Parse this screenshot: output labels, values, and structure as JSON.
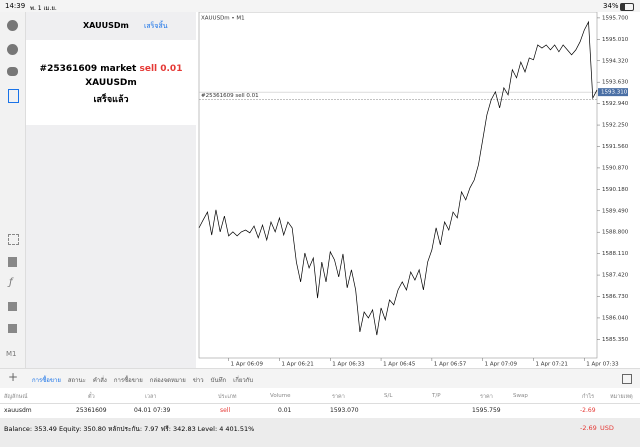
{
  "status_bar": {
    "time": "14:39",
    "date": "พ. 1 เม.ย.",
    "battery": "34%"
  },
  "toolbar": {
    "timeframe": "M1"
  },
  "panel": {
    "symbol": "XAUUSDm",
    "done": "เสร็จสิ้น",
    "order": "#25361609 market",
    "order_type": "sell 0.01",
    "order_symbol": "XAUUSDm",
    "status": "เสร็จแล้ว"
  },
  "chart_data": {
    "type": "line",
    "title": "XAUUSDm • M1",
    "color": "#000000",
    "values": [
      1588.94,
      1589.2,
      1589.45,
      1588.71,
      1589.52,
      1588.81,
      1589.32,
      1588.68,
      1588.81,
      1588.68,
      1588.81,
      1588.87,
      1588.78,
      1589.0,
      1588.62,
      1589.03,
      1588.55,
      1589.13,
      1588.81,
      1589.26,
      1588.71,
      1589.13,
      1588.94,
      1587.84,
      1587.2,
      1588.13,
      1587.65,
      1587.97,
      1586.68,
      1587.84,
      1587.2,
      1588.17,
      1587.91,
      1587.36,
      1588.1,
      1587.01,
      1587.59,
      1586.94,
      1585.59,
      1586.23,
      1586.04,
      1586.3,
      1585.49,
      1586.36,
      1585.98,
      1586.62,
      1586.46,
      1586.94,
      1587.2,
      1586.94,
      1587.52,
      1587.26,
      1587.59,
      1586.94,
      1587.84,
      1588.23,
      1588.94,
      1588.39,
      1589.13,
      1588.87,
      1589.45,
      1589.26,
      1590.1,
      1589.84,
      1590.23,
      1590.48,
      1590.97,
      1591.77,
      1592.58,
      1593.06,
      1593.32,
      1592.8,
      1593.45,
      1593.22,
      1594.03,
      1593.77,
      1594.28,
      1593.96,
      1594.41,
      1594.35,
      1594.83,
      1594.73,
      1594.83,
      1594.67,
      1594.83,
      1594.61,
      1594.83,
      1594.67,
      1594.51,
      1594.67,
      1594.93,
      1595.31,
      1595.57,
      1593.12,
      1593.38
    ],
    "xlim": [
      0,
      94
    ],
    "xticks": [
      {
        "value": 7,
        "label": "1 Apr 06:09"
      },
      {
        "value": 19,
        "label": "1 Apr 06:21"
      },
      {
        "value": 31,
        "label": "1 Apr 06:33"
      },
      {
        "value": 43,
        "label": "1 Apr 06:45"
      },
      {
        "value": 55,
        "label": "1 Apr 06:57"
      },
      {
        "value": 67,
        "label": "1 Apr 07:09"
      },
      {
        "value": 79,
        "label": "1 Apr 07:21"
      },
      {
        "value": 91,
        "label": "1 Apr 07:33"
      }
    ],
    "ylim": [
      1584.75,
      1595.89
    ],
    "yticks": [
      {
        "value": 1595.7,
        "label": "1595.700"
      },
      {
        "value": 1595.01,
        "label": "1595.010"
      },
      {
        "value": 1594.32,
        "label": "1594.320"
      },
      {
        "value": 1593.63,
        "label": "1593.630"
      },
      {
        "value": 1592.94,
        "label": "1592.940"
      },
      {
        "value": 1592.25,
        "label": "1592.250"
      },
      {
        "value": 1591.56,
        "label": "1591.560"
      },
      {
        "value": 1590.87,
        "label": "1590.870"
      },
      {
        "value": 1590.18,
        "label": "1590.180"
      },
      {
        "value": 1589.49,
        "label": "1589.490"
      },
      {
        "value": 1588.8,
        "label": "1588.800"
      },
      {
        "value": 1588.11,
        "label": "1588.110"
      },
      {
        "value": 1587.42,
        "label": "1587.420"
      },
      {
        "value": 1586.73,
        "label": "1586.730"
      },
      {
        "value": 1586.04,
        "label": "1586.040"
      },
      {
        "value": 1585.35,
        "label": "1585.350"
      }
    ],
    "order_line": {
      "value": 1593.07,
      "label": "#25361609 sell 0.01"
    },
    "current_price": {
      "value": 1593.31,
      "label": "1593.310"
    }
  },
  "tabs": [
    "การซื้อขาย",
    "สถานะ",
    "คำสั่ง",
    "การซื้อขาย",
    "กล่องจดหมาย",
    "ข่าว",
    "บันทึก",
    "เกี่ยวกับ"
  ],
  "table": {
    "headers": [
      "สัญลักษณ์",
      "ตั๋ว",
      "เวลา",
      "ประเภท",
      "Volume",
      "ราคา",
      "S/L",
      "T/P",
      "ราคา",
      "Swap",
      "กำไร",
      "หมายเหตุ"
    ],
    "row": {
      "symbol": "xauusdm",
      "ticket": "25361609",
      "time": "04.01 07:39",
      "type": "sell",
      "volume": "0.01",
      "price": "1593.070",
      "current": "1595.759",
      "profit": "-2.69"
    }
  },
  "footer": {
    "summary": "Balance: 353.49 Equity: 350.80 หลักประกัน: 7.97 ฟรี: 342.83 Level: 4 401.51%",
    "profit": "-2.69",
    "currency": "USD"
  }
}
